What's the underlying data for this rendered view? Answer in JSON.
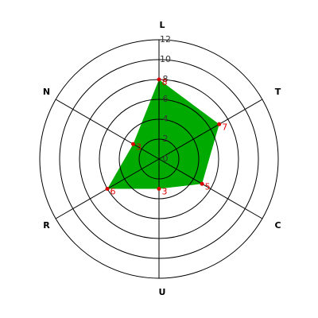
{
  "chart_data": {
    "type": "radar",
    "categories": [
      "L",
      "T",
      "C",
      "U",
      "R",
      "N"
    ],
    "values": [
      8,
      7,
      5,
      3,
      6,
      3
    ],
    "color": "#00aa00",
    "point_color": "#dd0000",
    "ylim": [
      0,
      12
    ],
    "yticks": [
      0,
      2,
      4,
      6,
      8,
      10,
      12
    ],
    "grid": true
  }
}
